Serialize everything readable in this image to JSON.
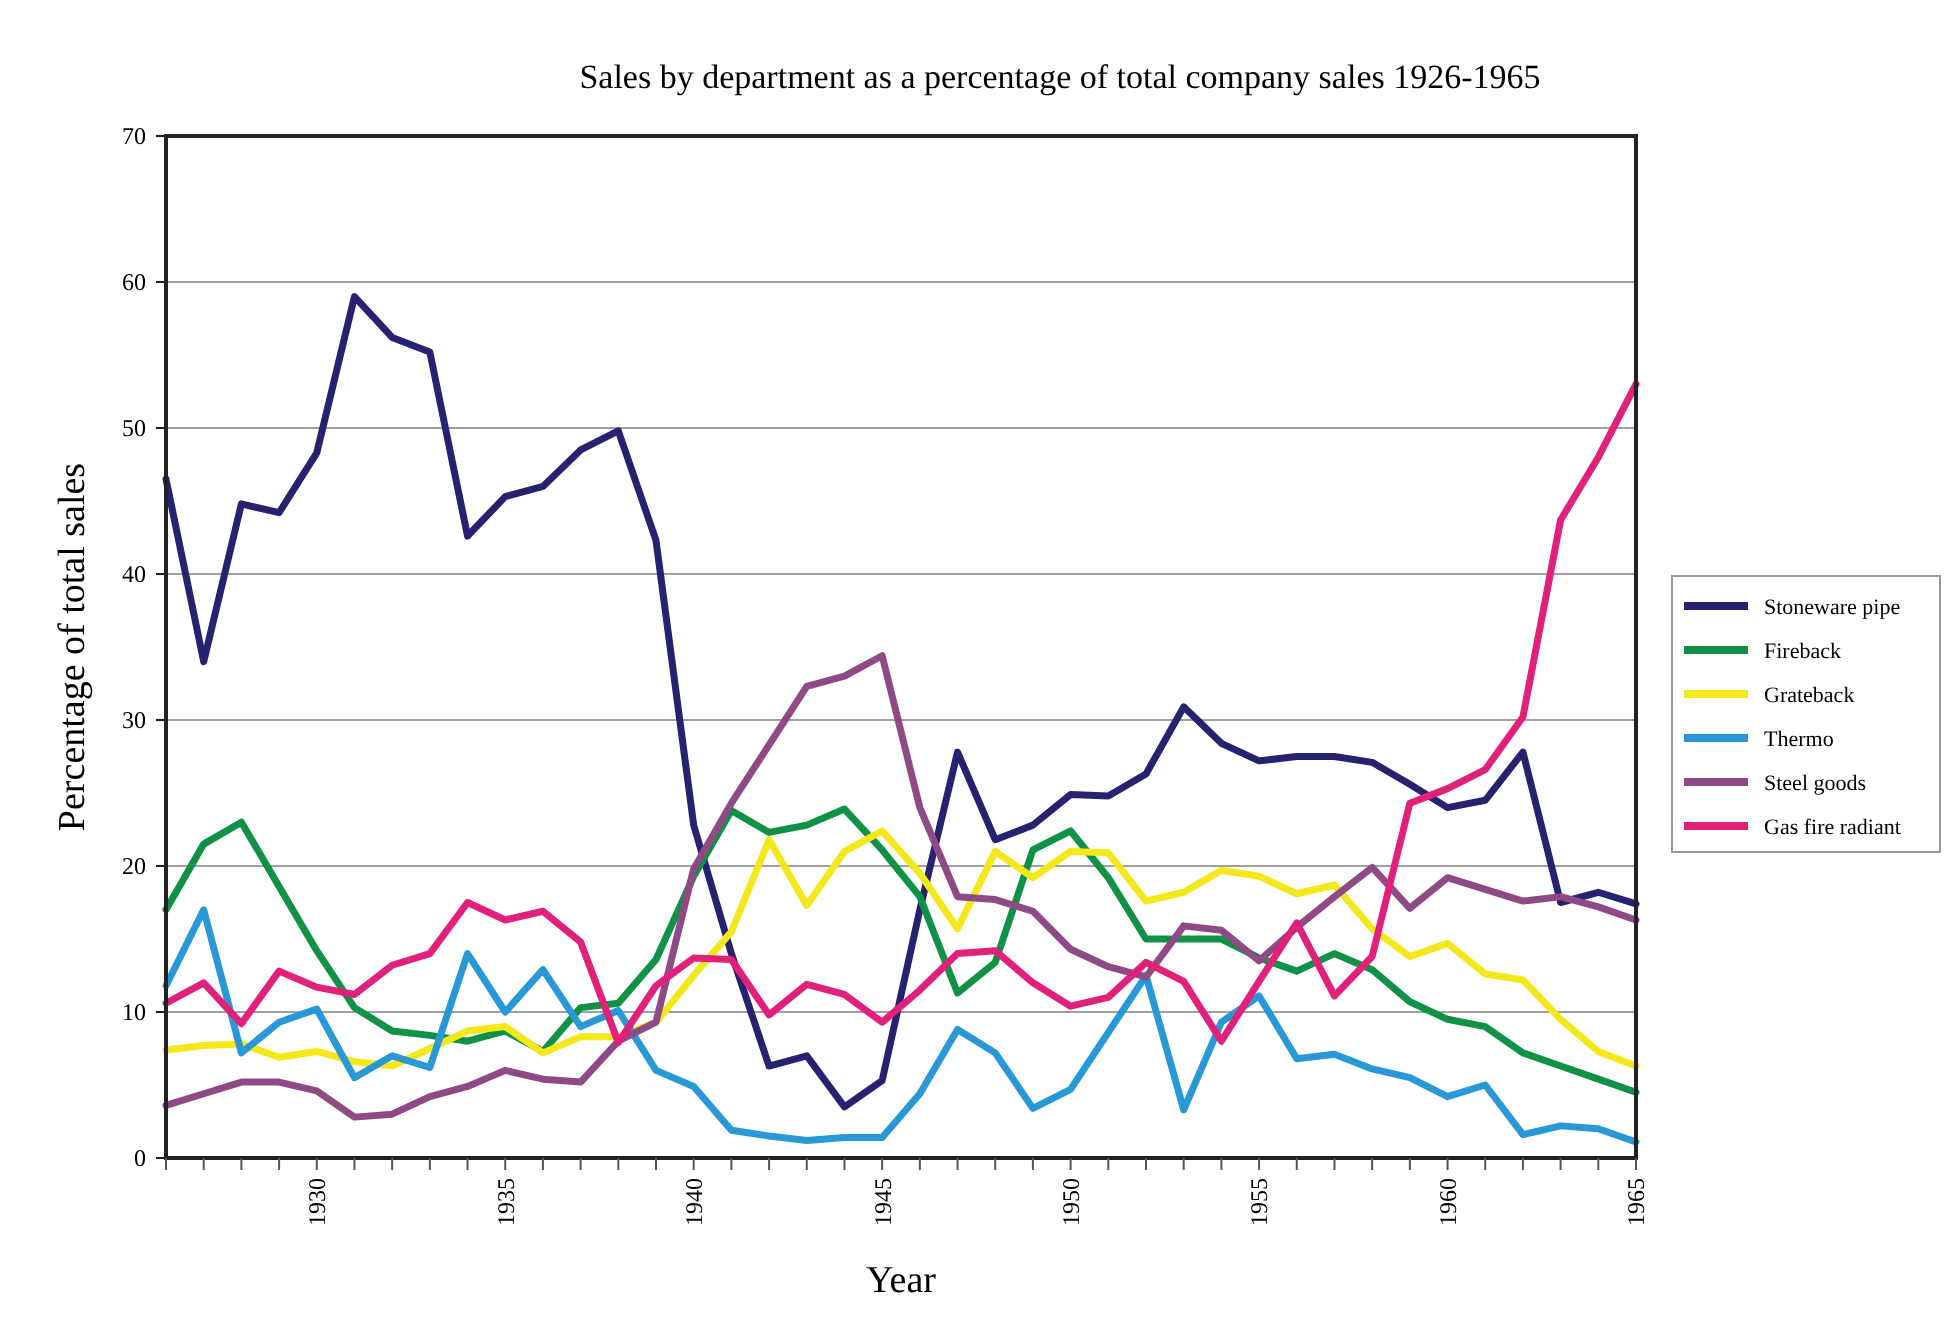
{
  "chart_data": {
    "type": "line",
    "title": "Sales by department as a percentage of total company sales 1926-1965",
    "xlabel": "Year",
    "ylabel": "Percentage of total sales",
    "x": [
      1926,
      1927,
      1928,
      1929,
      1930,
      1931,
      1932,
      1933,
      1934,
      1935,
      1936,
      1937,
      1938,
      1939,
      1940,
      1941,
      1942,
      1943,
      1944,
      1945,
      1946,
      1947,
      1948,
      1949,
      1950,
      1951,
      1952,
      1953,
      1954,
      1955,
      1956,
      1957,
      1958,
      1959,
      1960,
      1961,
      1962,
      1963,
      1964,
      1965
    ],
    "xlim": [
      1926,
      1965
    ],
    "xticks": [
      {
        "value": 1926,
        "label": null
      },
      {
        "value": 1927,
        "label": null
      },
      {
        "value": 1928,
        "label": null
      },
      {
        "value": 1929,
        "label": null
      },
      1930,
      {
        "value": 1931,
        "label": null
      },
      {
        "value": 1932,
        "label": null
      },
      {
        "value": 1933,
        "label": null
      },
      {
        "value": 1934,
        "label": null
      },
      1935,
      {
        "value": 1936,
        "label": null
      },
      {
        "value": 1937,
        "label": null
      },
      {
        "value": 1938,
        "label": null
      },
      {
        "value": 1939,
        "label": null
      },
      1940,
      {
        "value": 1941,
        "label": null
      },
      {
        "value": 1942,
        "label": null
      },
      {
        "value": 1943,
        "label": null
      },
      {
        "value": 1944,
        "label": null
      },
      1945,
      {
        "value": 1946,
        "label": null
      },
      {
        "value": 1947,
        "label": null
      },
      {
        "value": 1948,
        "label": null
      },
      {
        "value": 1949,
        "label": null
      },
      1950,
      {
        "value": 1951,
        "label": null
      },
      {
        "value": 1952,
        "label": null
      },
      {
        "value": 1953,
        "label": null
      },
      {
        "value": 1954,
        "label": null
      },
      1955,
      {
        "value": 1956,
        "label": null
      },
      {
        "value": 1957,
        "label": null
      },
      {
        "value": 1958,
        "label": null
      },
      {
        "value": 1959,
        "label": null
      },
      1960,
      {
        "value": 1961,
        "label": null
      },
      {
        "value": 1962,
        "label": null
      },
      {
        "value": 1963,
        "label": null
      },
      {
        "value": 1964,
        "label": null
      },
      1965
    ],
    "ylim": [
      0,
      70
    ],
    "yticks": [
      0,
      10,
      20,
      30,
      40,
      50,
      60,
      70
    ],
    "grid": "y",
    "legend": "right",
    "line_style": "solid",
    "marker": "none",
    "series": [
      {
        "name": "Stoneware pipe",
        "color": "#272270",
        "values": [
          46.5,
          34,
          44.8,
          44.2,
          48.3,
          59,
          56.2,
          55.2,
          42.6,
          45.3,
          46,
          48.5,
          49.8,
          42.3,
          22.8,
          14,
          6.3,
          7,
          3.5,
          5.3,
          17,
          27.8,
          21.8,
          22.8,
          24.9,
          24.8,
          26.3,
          30.9,
          28.4,
          27.2,
          27.5,
          27.5,
          27.1,
          25.6,
          24,
          24.5,
          27.8,
          17.5,
          18.2,
          17.4
        ]
      },
      {
        "name": "Fireback",
        "color": "#0f9146",
        "values": [
          17,
          21.5,
          23,
          18.6,
          14.2,
          10.3,
          8.7,
          8.4,
          8,
          8.7,
          7.3,
          10.3,
          10.6,
          13.6,
          19.3,
          23.8,
          22.3,
          22.8,
          23.9,
          21.1,
          17.9,
          11.3,
          13.4,
          21.1,
          22.4,
          19.2,
          15,
          15,
          15,
          13.7,
          12.8,
          14,
          12.9,
          10.7,
          9.5,
          9,
          7.2,
          6.3,
          5.4,
          4.5
        ]
      },
      {
        "name": "Grateback",
        "color": "#f5e81a",
        "values": [
          7.4,
          7.7,
          7.8,
          6.9,
          7.3,
          6.6,
          6.3,
          7.5,
          8.7,
          9,
          7.2,
          8.3,
          8.3,
          9.3,
          12.5,
          15.5,
          21.8,
          17.3,
          21,
          22.4,
          19.5,
          15.7,
          21,
          19.2,
          21,
          20.9,
          17.6,
          18.2,
          19.7,
          19.3,
          18.1,
          18.7,
          15.7,
          13.8,
          14.7,
          12.6,
          12.2,
          9.5,
          7.3,
          6.3
        ]
      },
      {
        "name": "Thermo",
        "color": "#2899d6",
        "values": [
          11.8,
          17,
          7.2,
          9.3,
          10.2,
          5.5,
          7,
          6.2,
          14,
          10,
          12.9,
          9,
          10.1,
          6,
          4.9,
          1.9,
          1.5,
          1.2,
          1.4,
          1.4,
          4.4,
          8.8,
          7.2,
          3.4,
          4.7,
          8.6,
          12.5,
          3.3,
          9.3,
          11.1,
          6.8,
          7.1,
          6.1,
          5.5,
          4.2,
          5,
          1.6,
          2.2,
          2,
          1.1
        ]
      },
      {
        "name": "Steel goods",
        "color": "#8f4a85",
        "values": [
          3.6,
          4.4,
          5.2,
          5.2,
          4.6,
          2.8,
          3,
          4.2,
          4.9,
          6,
          5.4,
          5.2,
          8,
          9.3,
          19.8,
          24.3,
          28.3,
          32.3,
          33,
          34.4,
          24,
          17.9,
          17.7,
          16.9,
          14.3,
          13.1,
          12.4,
          15.9,
          15.6,
          13.5,
          15.8,
          17.9,
          19.9,
          17.1,
          19.2,
          18.4,
          17.6,
          17.9,
          17.2,
          16.3
        ]
      },
      {
        "name": "Gas fire radiant",
        "color": "#e0207a",
        "values": [
          10.6,
          12,
          9.2,
          12.8,
          11.7,
          11.2,
          13.2,
          14,
          17.5,
          16.3,
          16.9,
          14.8,
          7.9,
          11.8,
          13.7,
          13.6,
          9.8,
          11.9,
          11.2,
          9.3,
          11.5,
          14,
          14.2,
          12,
          10.4,
          11,
          13.4,
          12.1,
          8,
          12.1,
          16.1,
          11.1,
          13.8,
          24.3,
          25.3,
          26.6,
          30.2,
          43.7,
          48,
          53
        ]
      }
    ]
  }
}
